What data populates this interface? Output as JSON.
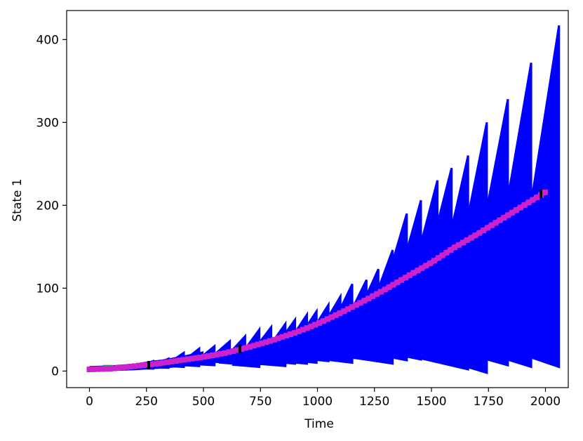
{
  "chart_data": {
    "type": "line",
    "title": "",
    "xlabel": "Time",
    "ylabel": "State 1",
    "xlim": [
      -100,
      2100
    ],
    "ylim": [
      -20,
      435
    ],
    "xticks": [
      0,
      250,
      500,
      750,
      1000,
      1250,
      1500,
      1750,
      2000
    ],
    "xtick_labels": [
      "0",
      "250",
      "500",
      "750",
      "1000",
      "1250",
      "1500",
      "1750",
      "2000"
    ],
    "yticks": [
      0,
      100,
      200,
      300,
      400
    ],
    "ytick_labels": [
      "0",
      "100",
      "200",
      "300",
      "400"
    ],
    "grid": false,
    "legend": false,
    "colors": {
      "envelope": "#0000ff",
      "mean": "#cc22cc",
      "marker": "#000000",
      "start": "#2e8b57"
    },
    "series": [
      {
        "role": "envelope",
        "description_x": "Time",
        "x": [
          0,
          200,
          400,
          600,
          700,
          800,
          900,
          1000,
          1100,
          1200,
          1300,
          1400,
          1500,
          1600,
          1650,
          1700,
          1800,
          1900,
          1980
        ],
        "upper": [
          6,
          10,
          30,
          45,
          62,
          66,
          90,
          125,
          150,
          175,
          208,
          230,
          252,
          268,
          302,
          328,
          372,
          417,
          420
        ],
        "lower": [
          0,
          0,
          0,
          -1,
          1,
          -2,
          -2,
          0,
          0,
          0,
          -2,
          0,
          3,
          -2,
          -3,
          5,
          5,
          5,
          5
        ]
      },
      {
        "role": "mean",
        "x": [
          0,
          100,
          200,
          300,
          400,
          500,
          600,
          700,
          800,
          900,
          1000,
          1100,
          1200,
          1300,
          1400,
          1500,
          1600,
          1700,
          1800,
          1900,
          2000
        ],
        "y": [
          2,
          3,
          6,
          9,
          13,
          17,
          22,
          29,
          37,
          46,
          57,
          70,
          84,
          99,
          115,
          131,
          149,
          165,
          182,
          199,
          216
        ]
      }
    ],
    "spikes": {
      "x": [
        250,
        315,
        380,
        445,
        510,
        575,
        640,
        700,
        750,
        810,
        850,
        900,
        940,
        990,
        1040,
        1090,
        1150,
        1200,
        1260,
        1320,
        1380,
        1450,
        1510,
        1580,
        1660,
        1750,
        1850,
        1970
      ],
      "peak": [
        12,
        15,
        22,
        27,
        30,
        36,
        42,
        50,
        53,
        57,
        62,
        68,
        72,
        80,
        90,
        105,
        110,
        123,
        146,
        190,
        206,
        230,
        245,
        260,
        300,
        328,
        372,
        417
      ],
      "trough": [
        3,
        4,
        5,
        6,
        7,
        10,
        8,
        5,
        8,
        6,
        9,
        9,
        10,
        12,
        15,
        10,
        14,
        14,
        9,
        13,
        14,
        18,
        20,
        2,
        -2,
        7,
        5,
        5
      ]
    },
    "black_markers": [
      {
        "x": 260,
        "y": 7
      },
      {
        "x": 660,
        "y": 27
      },
      {
        "x": 1980,
        "y": 214
      }
    ]
  }
}
